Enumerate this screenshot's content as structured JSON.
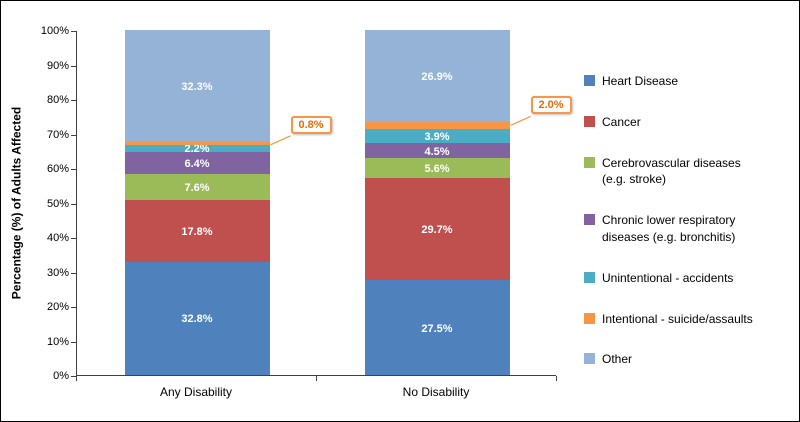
{
  "chart_data": {
    "type": "bar",
    "stacked": true,
    "percent_stacked": true,
    "title": "",
    "xlabel": "",
    "ylabel": "Percentage (%) of Adults Affected",
    "ylim": [
      0,
      100
    ],
    "grid": false,
    "legend_position": "right",
    "categories": [
      "Any Disability",
      "No Disability"
    ],
    "yticks": [
      "0%",
      "10%",
      "20%",
      "30%",
      "40%",
      "50%",
      "60%",
      "70%",
      "80%",
      "90%",
      "100%"
    ],
    "series": [
      {
        "name": "Heart Disease",
        "color": "#4F81BD",
        "values": [
          32.8,
          27.5
        ]
      },
      {
        "name": "Cancer",
        "color": "#C0504D",
        "values": [
          17.8,
          29.7
        ]
      },
      {
        "name": "Cerebrovascular diseases\n(e.g. stroke)",
        "color": "#9BBB59",
        "values": [
          7.6,
          5.6
        ]
      },
      {
        "name": "Chronic lower respiratory\ndiseases (e.g. bronchitis)",
        "color": "#8064A2",
        "values": [
          6.4,
          4.5
        ]
      },
      {
        "name": "Unintentional - accidents",
        "color": "#4BACC6",
        "values": [
          2.2,
          3.9
        ]
      },
      {
        "name": "Intentional - suicide/assaults",
        "color": "#F79646",
        "values": [
          0.8,
          2.0
        ],
        "callout": true
      },
      {
        "name": "Other",
        "color": "#95B3D7",
        "values": [
          32.3,
          26.9
        ]
      }
    ],
    "labels": [
      [
        "32.8%",
        "17.8%",
        "7.6%",
        "6.4%",
        "2.2%",
        "0.8%",
        "32.3%"
      ],
      [
        "27.5%",
        "29.7%",
        "5.6%",
        "4.5%",
        "3.9%",
        "2.0%",
        "26.9%"
      ]
    ]
  }
}
